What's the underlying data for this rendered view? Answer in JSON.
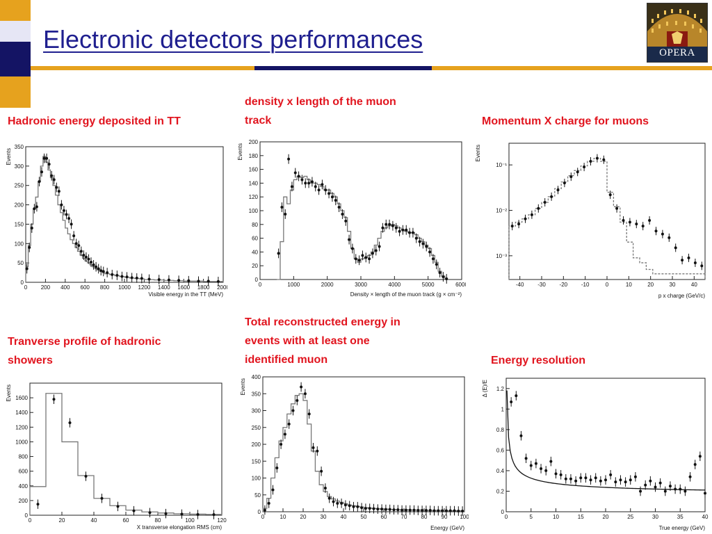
{
  "slide": {
    "title": "Electronic detectors performances",
    "logo_text": "OPERA",
    "colors": {
      "title": "#1f1f8f",
      "caption": "#e1141e",
      "rule_gold": "#e6a21e",
      "rule_navy": "#141464",
      "deco_gold": "#e6a21e",
      "deco_navy": "#141464",
      "deco_light": "#e6e6f5"
    }
  },
  "captions": {
    "hadronic": "Hadronic energy deposited in TT",
    "density": "density x length of the muon\ntrack",
    "momentum": "Momentum X charge for muons",
    "transverse": "Tranverse profile of hadronic\nshowers",
    "total": "Total reconstructed energy in\nevents with at least one\nidentified muon",
    "resolution": "Energy resolution"
  },
  "chart_data": [
    {
      "id": "hadronic",
      "type": "histogram",
      "ylabel": "Events",
      "xlabel": "Visible energy in the TT (MeV)",
      "xlim": [
        0,
        2000
      ],
      "ylim": [
        0,
        350
      ],
      "xticks": [
        0,
        200,
        400,
        600,
        800,
        1000,
        1200,
        1400,
        1600,
        1800,
        2000
      ],
      "yticks": [
        0,
        50,
        100,
        150,
        200,
        250,
        300,
        350
      ],
      "log_y": false,
      "mc_dashed": false,
      "mc": {
        "edges": [
          0,
          25,
          50,
          75,
          100,
          125,
          150,
          175,
          200,
          225,
          250,
          275,
          300,
          325,
          350,
          375,
          400,
          425,
          450,
          475,
          500,
          525,
          550,
          575,
          600,
          625,
          650,
          675,
          700,
          725,
          750,
          775,
          800,
          850,
          900,
          950,
          1000,
          1050,
          1100,
          1150,
          1200,
          1300,
          1400,
          1500,
          1600,
          1700,
          1800,
          1900,
          2000
        ],
        "values": [
          40,
          95,
          150,
          190,
          220,
          260,
          300,
          325,
          310,
          290,
          270,
          250,
          225,
          200,
          180,
          160,
          140,
          125,
          110,
          100,
          90,
          80,
          70,
          62,
          55,
          50,
          45,
          40,
          35,
          32,
          28,
          25,
          22,
          20,
          17,
          15,
          13,
          11,
          10,
          9,
          7,
          6,
          5,
          4,
          3,
          3,
          2,
          2
        ]
      },
      "data": {
        "x": [
          12,
          37,
          62,
          87,
          112,
          137,
          162,
          187,
          212,
          237,
          262,
          287,
          312,
          337,
          362,
          387,
          412,
          437,
          462,
          487,
          512,
          537,
          562,
          587,
          612,
          637,
          662,
          687,
          712,
          737,
          762,
          787,
          825,
          875,
          925,
          975,
          1025,
          1075,
          1125,
          1175,
          1250,
          1350,
          1450,
          1550,
          1650,
          1750,
          1850,
          1950
        ],
        "y": [
          35,
          90,
          140,
          190,
          195,
          260,
          285,
          320,
          320,
          305,
          275,
          265,
          245,
          235,
          200,
          185,
          175,
          165,
          150,
          120,
          100,
          95,
          80,
          70,
          65,
          60,
          52,
          45,
          40,
          35,
          30,
          28,
          25,
          20,
          18,
          15,
          14,
          12,
          11,
          10,
          8,
          7,
          6,
          5,
          4,
          3,
          3,
          2
        ]
      }
    },
    {
      "id": "density",
      "type": "histogram",
      "ylabel": "Events",
      "xlabel": "Density × length of the muon track (g × cm⁻²)",
      "xlim": [
        0,
        6000
      ],
      "ylim": [
        0,
        200
      ],
      "xticks": [
        0,
        1000,
        2000,
        3000,
        4000,
        5000,
        6000
      ],
      "yticks": [
        0,
        20,
        40,
        60,
        80,
        100,
        120,
        140,
        160,
        180,
        200
      ],
      "log_y": false,
      "mc_dashed": false,
      "mc": {
        "edges": [
          500,
          600,
          700,
          800,
          900,
          1000,
          1100,
          1200,
          1300,
          1400,
          1500,
          1600,
          1700,
          1800,
          1900,
          2000,
          2100,
          2200,
          2300,
          2400,
          2500,
          2600,
          2700,
          2800,
          2900,
          3000,
          3100,
          3200,
          3300,
          3400,
          3500,
          3600,
          3700,
          3800,
          3900,
          4000,
          4100,
          4200,
          4300,
          4400,
          4500,
          4600,
          4700,
          4800,
          4900,
          5000,
          5100,
          5200,
          5300,
          5400,
          5500,
          5600
        ],
        "values": [
          0,
          55,
          120,
          110,
          130,
          145,
          150,
          148,
          150,
          145,
          140,
          140,
          138,
          135,
          130,
          130,
          125,
          120,
          110,
          100,
          90,
          70,
          45,
          30,
          25,
          30,
          32,
          35,
          40,
          50,
          60,
          70,
          75,
          78,
          80,
          78,
          75,
          72,
          70,
          68,
          68,
          65,
          60,
          55,
          50,
          45,
          35,
          25,
          12,
          5,
          0
        ]
      },
      "data": {
        "x": [
          550,
          650,
          750,
          850,
          950,
          1050,
          1150,
          1250,
          1350,
          1450,
          1550,
          1650,
          1750,
          1850,
          1950,
          2050,
          2150,
          2250,
          2350,
          2450,
          2550,
          2650,
          2750,
          2850,
          2950,
          3050,
          3150,
          3250,
          3350,
          3450,
          3550,
          3650,
          3750,
          3850,
          3950,
          4050,
          4150,
          4250,
          4350,
          4450,
          4550,
          4650,
          4750,
          4850,
          4950,
          5050,
          5150,
          5250,
          5350,
          5450,
          5550
        ],
        "y": [
          38,
          105,
          95,
          175,
          135,
          155,
          150,
          145,
          140,
          140,
          142,
          135,
          130,
          138,
          130,
          125,
          120,
          115,
          105,
          95,
          85,
          58,
          45,
          30,
          28,
          35,
          32,
          30,
          38,
          42,
          48,
          75,
          80,
          80,
          78,
          75,
          70,
          72,
          72,
          68,
          68,
          60,
          55,
          52,
          48,
          40,
          30,
          22,
          10,
          4,
          1
        ]
      }
    },
    {
      "id": "momentum",
      "type": "histogram",
      "ylabel": "Events",
      "xlabel": "p x charge (GeV/c)",
      "xlim": [
        -45,
        45
      ],
      "ylim": [
        0.0003,
        0.3
      ],
      "xticks": [
        -40,
        -30,
        -20,
        -10,
        0,
        10,
        20,
        30,
        40
      ],
      "yticks": [
        0.001,
        0.01,
        0.1
      ],
      "ytick_labels": [
        "10⁻³",
        "10⁻²",
        "10⁻¹"
      ],
      "log_y": true,
      "mc_dashed": true,
      "mc": {
        "edges": [
          -45,
          -42,
          -39,
          -36,
          -33,
          -30,
          -27,
          -24,
          -21,
          -18,
          -15,
          -12,
          -9,
          -6,
          -3,
          0,
          3,
          6,
          9,
          12,
          15,
          18,
          21,
          24,
          27,
          30,
          33,
          36,
          39,
          42,
          45
        ],
        "values": [
          0.0045,
          0.0055,
          0.0065,
          0.008,
          0.011,
          0.015,
          0.02,
          0.03,
          0.042,
          0.058,
          0.075,
          0.095,
          0.12,
          0.14,
          0.12,
          0.025,
          0.012,
          0.0055,
          0.002,
          0.0009,
          0.0007,
          0.0005,
          0.0004,
          0.0004,
          0.0004,
          0.0004,
          0.0004,
          0.0004,
          0.0004,
          0.0004
        ]
      },
      "data": {
        "x": [
          -43.5,
          -40.5,
          -37.5,
          -34.5,
          -31.5,
          -28.5,
          -25.5,
          -22.5,
          -19.5,
          -16.5,
          -13.5,
          -10.5,
          -7.5,
          -4.5,
          -1.5,
          1.5,
          4.5,
          7.5,
          10.5,
          13.5,
          16.5,
          19.5,
          22.5,
          25.5,
          28.5,
          31.5,
          34.5,
          37.5,
          40.5,
          43.5
        ],
        "y": [
          0.0045,
          0.005,
          0.0065,
          0.008,
          0.011,
          0.015,
          0.02,
          0.028,
          0.04,
          0.055,
          0.07,
          0.09,
          0.12,
          0.14,
          0.13,
          0.022,
          0.011,
          0.006,
          0.0055,
          0.005,
          0.0045,
          0.006,
          0.0035,
          0.003,
          0.0025,
          0.0015,
          0.0008,
          0.0009,
          0.0007,
          0.0006
        ]
      }
    },
    {
      "id": "transverse",
      "type": "histogram",
      "ylabel": "Events",
      "xlabel": "X transverse elongation RMS (cm)",
      "xlim": [
        0,
        120
      ],
      "ylim": [
        0,
        1800
      ],
      "xticks": [
        0,
        20,
        40,
        60,
        80,
        100,
        120
      ],
      "yticks": [
        0,
        200,
        400,
        600,
        800,
        1000,
        1200,
        1400,
        1600
      ],
      "log_y": false,
      "mc_dashed": false,
      "mc": {
        "edges": [
          0,
          10,
          20,
          30,
          40,
          50,
          60,
          70,
          80,
          90,
          100,
          110,
          120
        ],
        "values": [
          390,
          1660,
          1000,
          540,
          230,
          130,
          70,
          45,
          30,
          20,
          15,
          10
        ]
      },
      "data": {
        "x": [
          5,
          15,
          25,
          35,
          45,
          55,
          65,
          75,
          85,
          95,
          105,
          115
        ],
        "y": [
          150,
          1580,
          1260,
          530,
          230,
          120,
          60,
          35,
          22,
          15,
          10,
          8
        ]
      }
    },
    {
      "id": "total",
      "type": "histogram",
      "ylabel": "Events",
      "xlabel": "Energy (GeV)",
      "xlim": [
        0,
        100
      ],
      "ylim": [
        0,
        400
      ],
      "xticks": [
        0,
        10,
        20,
        30,
        40,
        50,
        60,
        70,
        80,
        90,
        100
      ],
      "yticks": [
        0,
        50,
        100,
        150,
        200,
        250,
        300,
        350,
        400
      ],
      "log_y": false,
      "mc_dashed": false,
      "mc": {
        "edges": [
          0,
          2,
          4,
          6,
          8,
          10,
          12,
          14,
          16,
          18,
          20,
          22,
          24,
          26,
          28,
          30,
          32,
          34,
          36,
          38,
          40,
          42,
          44,
          46,
          48,
          50,
          52,
          54,
          56,
          58,
          60,
          62,
          64,
          66,
          68,
          70,
          72,
          74,
          76,
          78,
          80,
          82,
          84,
          86,
          88,
          90,
          92,
          94,
          96,
          98,
          100
        ],
        "values": [
          10,
          40,
          100,
          160,
          210,
          250,
          290,
          320,
          345,
          350,
          330,
          260,
          180,
          120,
          80,
          60,
          45,
          38,
          32,
          28,
          24,
          20,
          18,
          16,
          14,
          12,
          11,
          10,
          9,
          8,
          8,
          7,
          7,
          6,
          6,
          6,
          5,
          5,
          5,
          5,
          4,
          4,
          4,
          4,
          4,
          3,
          3,
          3,
          3,
          3
        ]
      },
      "data": {
        "x": [
          1,
          3,
          5,
          7,
          9,
          11,
          13,
          15,
          17,
          19,
          21,
          23,
          25,
          27,
          29,
          31,
          33,
          35,
          37,
          39,
          41,
          43,
          45,
          47,
          49,
          51,
          53,
          55,
          57,
          59,
          61,
          63,
          65,
          67,
          69,
          71,
          73,
          75,
          77,
          79,
          81,
          83,
          85,
          87,
          89,
          91,
          93,
          95,
          97,
          99
        ],
        "y": [
          5,
          25,
          65,
          130,
          200,
          230,
          260,
          300,
          330,
          370,
          350,
          290,
          190,
          180,
          120,
          70,
          40,
          30,
          25,
          25,
          20,
          18,
          15,
          15,
          12,
          10,
          10,
          9,
          8,
          8,
          7,
          7,
          6,
          6,
          5,
          5,
          5,
          5,
          4,
          4,
          4,
          4,
          3,
          3,
          3,
          3,
          3,
          3,
          2,
          2
        ]
      }
    },
    {
      "id": "resolution",
      "type": "scatter",
      "ylabel": "Δ (E)/E",
      "xlabel": "True energy (GeV)",
      "xlim": [
        0,
        40
      ],
      "ylim": [
        0,
        1.3
      ],
      "xticks": [
        0,
        5,
        10,
        15,
        20,
        25,
        30,
        35,
        40
      ],
      "yticks": [
        0,
        0.2,
        0.4,
        0.6,
        0.8,
        1.0,
        1.2
      ],
      "ytick_labels": [
        "0",
        "0.2",
        "0.4",
        "0.6",
        "0.8",
        "1",
        "1.2"
      ],
      "log_y": false,
      "fit": {
        "a": 0.148,
        "b": 0.4,
        "x_from": 0.15,
        "x_to": 40
      },
      "data": {
        "x": [
          1,
          2,
          3,
          4,
          5,
          6,
          7,
          8,
          9,
          10,
          11,
          12,
          13,
          14,
          15,
          16,
          17,
          18,
          19,
          20,
          21,
          22,
          23,
          24,
          25,
          26,
          27,
          28,
          29,
          30,
          31,
          32,
          33,
          34,
          35,
          36,
          37,
          38,
          39,
          40
        ],
        "y": [
          1.07,
          1.13,
          0.74,
          0.52,
          0.45,
          0.47,
          0.42,
          0.4,
          0.49,
          0.37,
          0.36,
          0.32,
          0.32,
          0.3,
          0.33,
          0.33,
          0.31,
          0.33,
          0.3,
          0.31,
          0.36,
          0.29,
          0.31,
          0.29,
          0.31,
          0.34,
          0.2,
          0.26,
          0.3,
          0.24,
          0.28,
          0.2,
          0.25,
          0.22,
          0.22,
          0.2,
          0.34,
          0.46,
          0.54,
          0.18
        ]
      }
    }
  ]
}
